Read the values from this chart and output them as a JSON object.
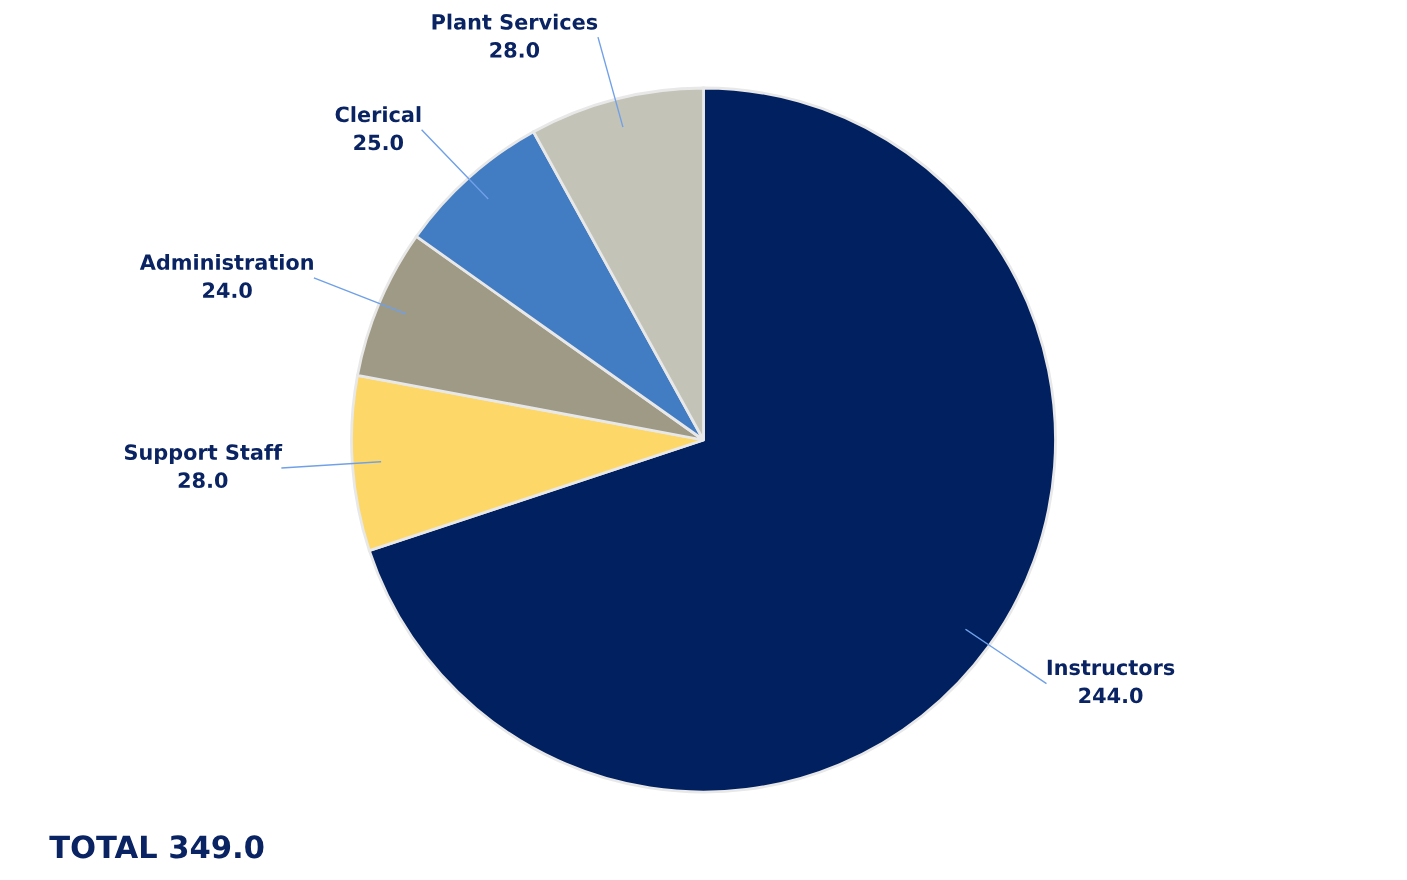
{
  "chart_data": {
    "type": "pie",
    "categories": [
      "Instructors",
      "Support Staff",
      "Administration",
      "Clerical",
      "Plant Services"
    ],
    "values": [
      244.0,
      28.0,
      24.0,
      25.0,
      28.0
    ],
    "colors": [
      "#012060",
      "#fdd868",
      "#9e9a86",
      "#427cc2",
      "#c3c3b8"
    ],
    "value_labels": [
      "244.0",
      "28.0",
      "24.0",
      "25.0",
      "28.0"
    ],
    "annotations": [
      "TOTAL 349.0"
    ]
  }
}
